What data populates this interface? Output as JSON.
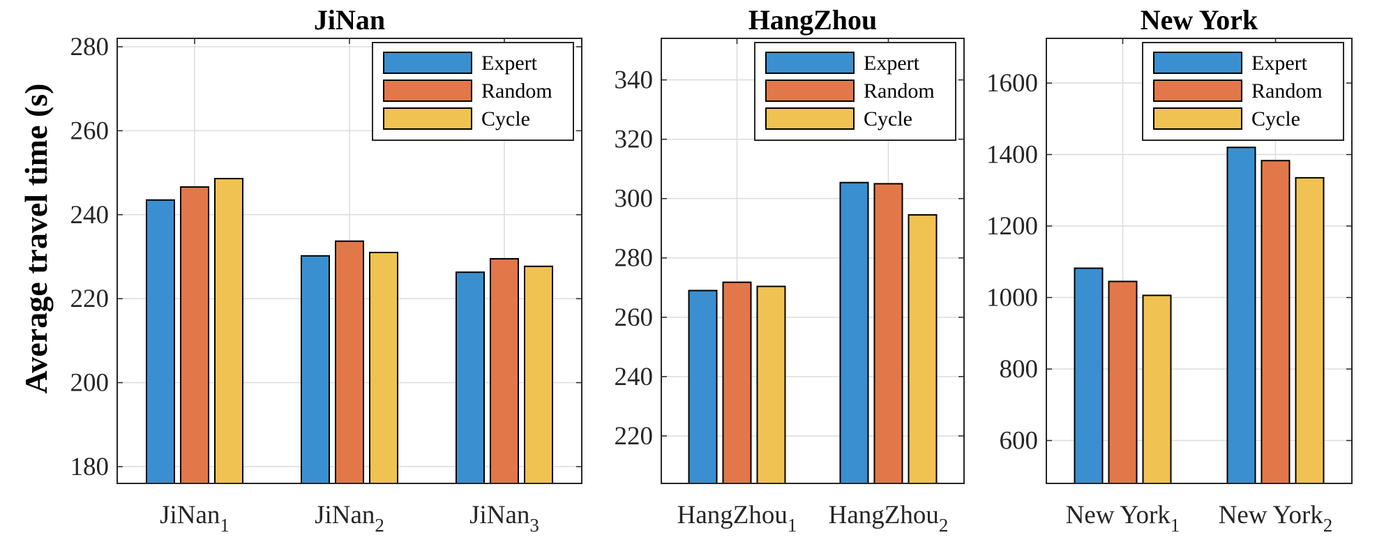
{
  "ylabel": "Average travel time (s)",
  "colors": {
    "Expert": "#3a8fd0",
    "Random": "#e2774a",
    "Cycle": "#f0c252"
  },
  "chart_data": [
    {
      "type": "bar",
      "title": "JiNan",
      "ylabel": "Average travel time (s)",
      "categories": [
        {
          "base": "JiNan",
          "sub": "1"
        },
        {
          "base": "JiNan",
          "sub": "2"
        },
        {
          "base": "JiNan",
          "sub": "3"
        }
      ],
      "series": [
        {
          "name": "Expert",
          "values": [
            243.5,
            230.2,
            226.3
          ]
        },
        {
          "name": "Random",
          "values": [
            246.6,
            233.7,
            229.5
          ]
        },
        {
          "name": "Cycle",
          "values": [
            248.6,
            231.0,
            227.7
          ]
        }
      ],
      "ylim": [
        176,
        282
      ],
      "yticks": [
        180,
        200,
        220,
        240,
        260,
        280
      ],
      "grid": true,
      "legend": "top-right"
    },
    {
      "type": "bar",
      "title": "HangZhou",
      "categories": [
        {
          "base": "HangZhou",
          "sub": "1"
        },
        {
          "base": "HangZhou",
          "sub": "2"
        }
      ],
      "series": [
        {
          "name": "Expert",
          "values": [
            269.0,
            305.4
          ]
        },
        {
          "name": "Random",
          "values": [
            271.8,
            305.0
          ]
        },
        {
          "name": "Cycle",
          "values": [
            270.4,
            294.5
          ]
        }
      ],
      "ylim": [
        204,
        354
      ],
      "yticks": [
        220,
        240,
        260,
        280,
        300,
        320,
        340
      ],
      "grid": true,
      "legend": "top-right"
    },
    {
      "type": "bar",
      "title": "New York",
      "categories": [
        {
          "base": "New York",
          "sub": "1"
        },
        {
          "base": "New York",
          "sub": "2"
        }
      ],
      "series": [
        {
          "name": "Expert",
          "values": [
            1082,
            1420
          ]
        },
        {
          "name": "Random",
          "values": [
            1045,
            1383
          ]
        },
        {
          "name": "Cycle",
          "values": [
            1006,
            1335
          ]
        }
      ],
      "ylim": [
        480,
        1725
      ],
      "yticks": [
        600,
        800,
        1000,
        1200,
        1400,
        1600
      ],
      "grid": true,
      "legend": "top-right"
    }
  ]
}
